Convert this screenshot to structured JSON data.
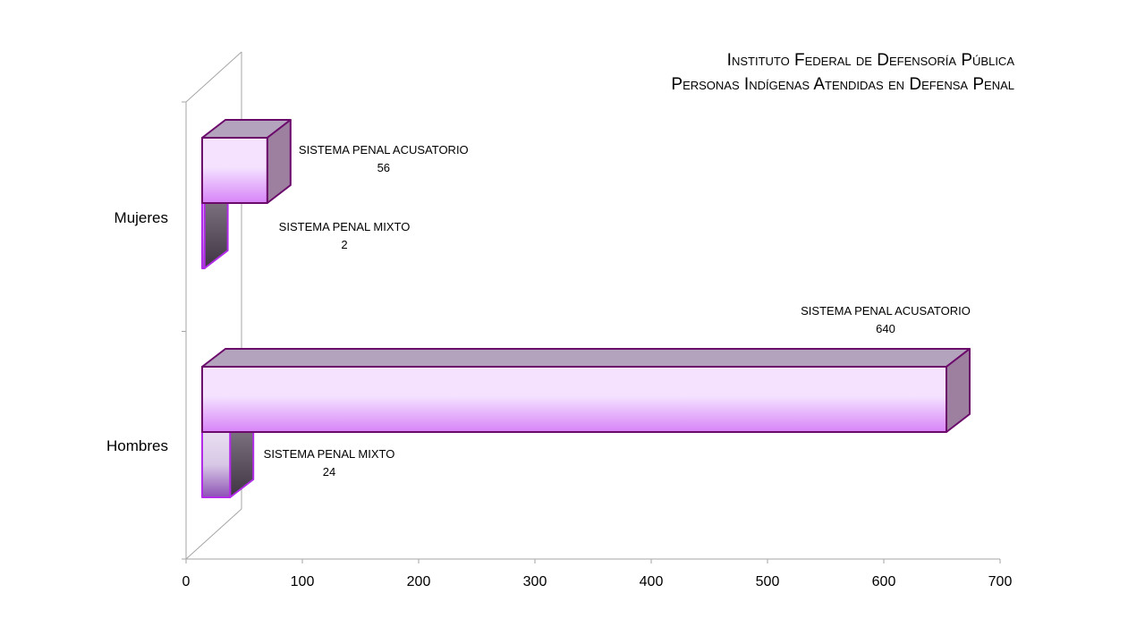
{
  "chart_data": {
    "type": "bar",
    "orientation": "horizontal",
    "style": "3d",
    "title_lines": [
      "Instituto Federal de Defensoría Pública",
      "Personas Indígenas Atendidas en Defensa Penal"
    ],
    "categories": [
      "Hombres",
      "Mujeres"
    ],
    "series": [
      {
        "name": "SISTEMA PENAL MIXTO",
        "values": [
          24,
          2
        ]
      },
      {
        "name": "SISTEMA PENAL ACUSATORIO",
        "values": [
          640,
          56
        ]
      }
    ],
    "x_ticks": [
      "0",
      "100",
      "200",
      "300",
      "400",
      "500",
      "600",
      "700"
    ],
    "xlim": [
      0,
      700
    ],
    "grid": false,
    "legend": "none",
    "colors": {
      "face_light": "#f4e2ff",
      "face_dark": "#d783f8",
      "top": "#b3a3bd",
      "side": "#9d7fa0",
      "outline": "#6c0a6c",
      "mixto_face_light": "#e8def0",
      "mixto_face_dark": "#8d52b4",
      "mixto_side_light": "#8a808e",
      "mixto_side_dark": "#3f3542",
      "mixto_outline": "#b22be8",
      "axis": "#a6a6a6"
    }
  }
}
